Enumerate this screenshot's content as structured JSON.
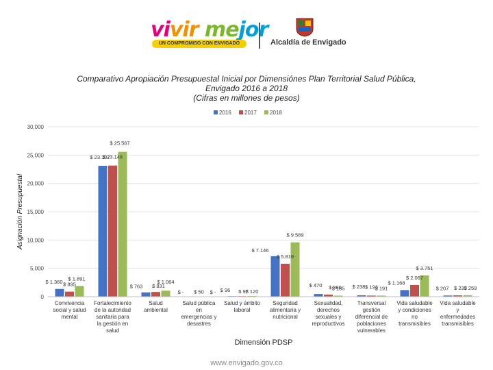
{
  "header": {
    "logo_main": [
      "vi",
      "vir",
      " me",
      "jor"
    ],
    "logo_tagline": "UN COMPROMISO CON ENVIGADO",
    "municipality": "Alcaldía de Envigado"
  },
  "footer": {
    "url": "www.envigado.gov.co"
  },
  "colors": {
    "2016": "#4472c4",
    "2017": "#c0504d",
    "2018": "#9bbb59"
  },
  "chart_data": {
    "type": "bar",
    "title": [
      "Comparativo Apropiación Presupuestal Inicial por Dimensiónes Plan Territorial Salud Pública,",
      "Envigado  2016 a 2018",
      "(Cifras en millones de pesos)"
    ],
    "xlabel": "Dimensión PDSP",
    "ylabel": "Asignación Presupuestal",
    "ylim": [
      0,
      30000
    ],
    "yticks": [
      0,
      5000,
      10000,
      15000,
      20000,
      25000,
      30000
    ],
    "ytick_labels": [
      "0",
      "5,000",
      "10,000",
      "15,000",
      "20,000",
      "25,000",
      "30,000"
    ],
    "legend_position": "top-center",
    "categories": [
      [
        "Convivencia",
        "social y salud",
        "mental"
      ],
      [
        "Fortalecimiento",
        "de la autoridad",
        "sanitaria para",
        "la gestión en",
        "salud"
      ],
      [
        "Salud",
        "ambiental"
      ],
      [
        "Salud pública",
        "en",
        "emergencias y",
        "desastres"
      ],
      [
        "Salud y ámbito",
        "laboral"
      ],
      [
        "Seguridad",
        "alimentaria y",
        "nutricional"
      ],
      [
        "Sexualidad,",
        "derechos",
        "sexuales y",
        "reproductivos"
      ],
      [
        "Transversal",
        "gestión",
        "diferencial de",
        "poblaciones",
        "vulnerables"
      ],
      [
        "Vida saludable",
        "y condiciones",
        "no",
        "transmisibles"
      ],
      [
        "Vida saludable",
        "y",
        "enfermedades",
        "transmisibles"
      ]
    ],
    "series": [
      {
        "name": "2016",
        "values": [
          1360,
          23107,
          763,
          0,
          96,
          7146,
          470,
          238,
          1168,
          207
        ],
        "labels": [
          "$ 1.360",
          "$ 23.107",
          "$ 763",
          "$ -",
          "$ 96",
          "$ 7.146",
          "$ 470",
          "$ 238",
          "$ 1.168",
          "$ 207"
        ]
      },
      {
        "name": "2017",
        "values": [
          895,
          23148,
          831,
          50,
          97,
          5819,
          366,
          193,
          2067,
          233
        ],
        "labels": [
          "$ 895",
          "$ 23.148",
          "$ 831",
          "$ 50",
          "$ 97",
          "$ 5.819",
          "$ 366",
          "$ 193",
          "$ 2.067",
          "$ 233"
        ]
      },
      {
        "name": "2018",
        "values": [
          1891,
          25567,
          1064,
          0,
          120,
          9589,
          185,
          191,
          3751,
          259
        ],
        "labels": [
          "$ 1.891",
          "$ 25.567",
          "$ 1.064",
          "$ -",
          "$ 120",
          "$ 9.589",
          "$ 185",
          "$ 191",
          "$ 3.751",
          "$ 259"
        ]
      }
    ]
  }
}
